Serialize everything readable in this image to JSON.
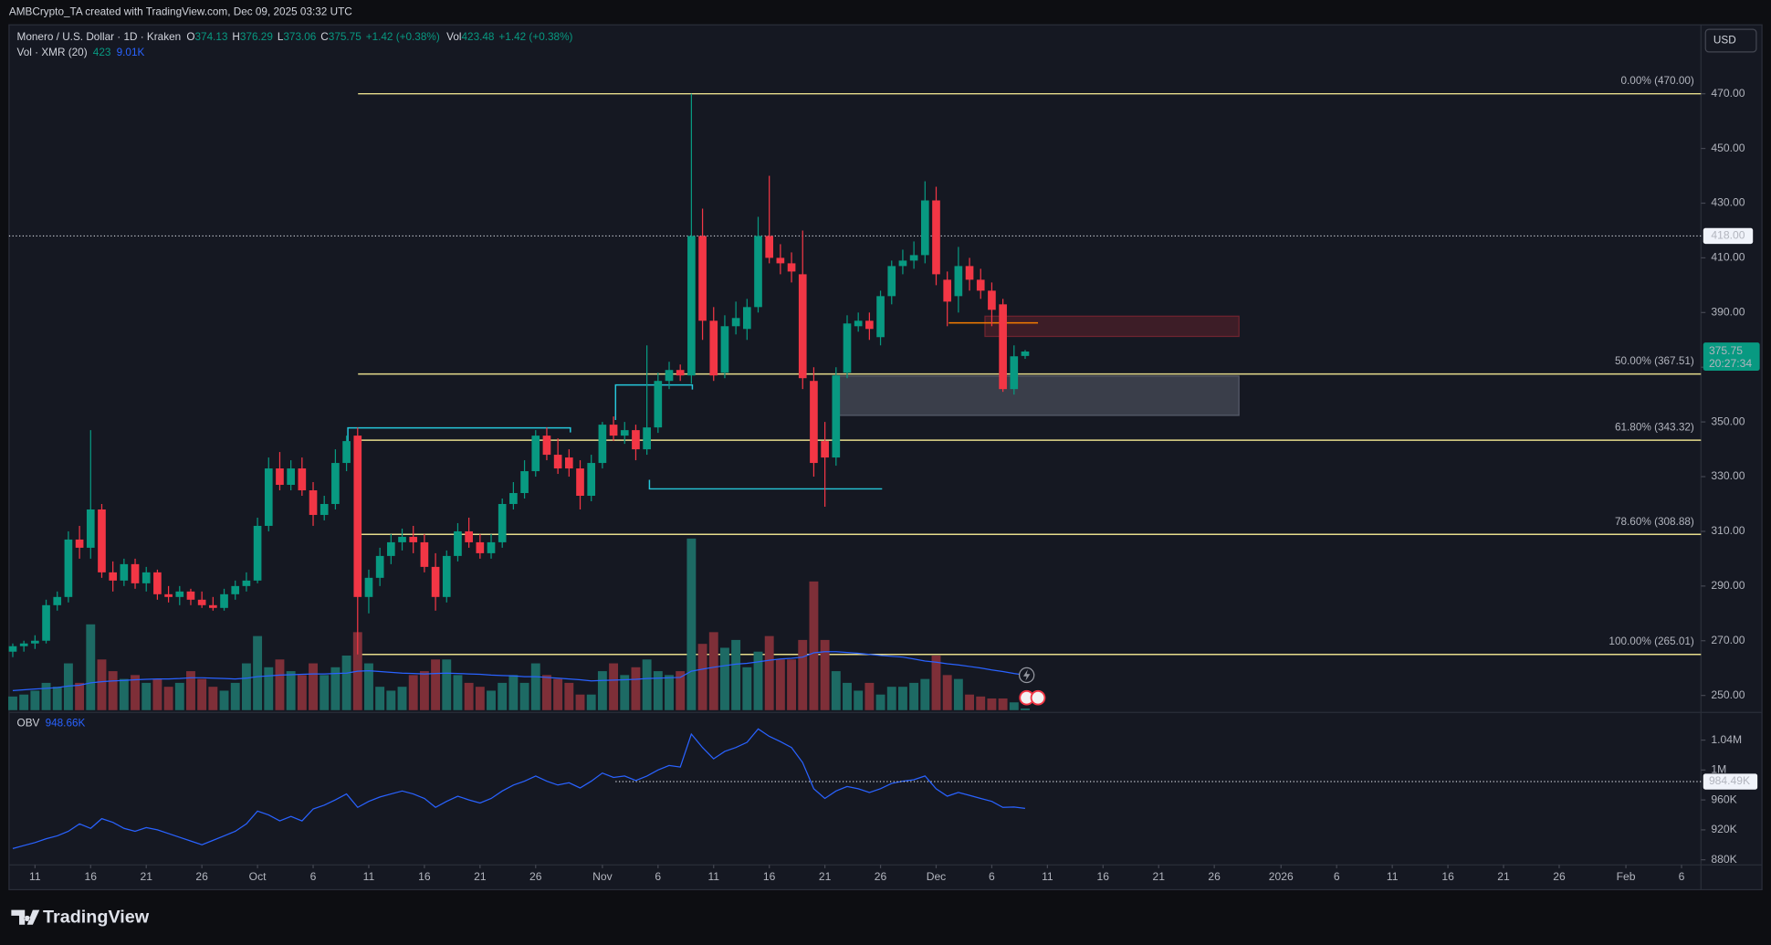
{
  "header": {
    "caption": "AMBCrypto_TA created with TradingView.com, Dec 09, 2025 03:32 UTC",
    "brand": "TradingView",
    "currency_button": "USD",
    "countdown": "20:27:34"
  },
  "chart_data": [
    {
      "type": "candlestick",
      "title": "Monero / U.S. Dollar · 1D · Kraken",
      "x": [
        "2025-09-09",
        "2025-09-10",
        "2025-09-11",
        "2025-09-12",
        "2025-09-13",
        "2025-09-14",
        "2025-09-15",
        "2025-09-16",
        "2025-09-17",
        "2025-09-18",
        "2025-09-19",
        "2025-09-20",
        "2025-09-21",
        "2025-09-22",
        "2025-09-23",
        "2025-09-24",
        "2025-09-25",
        "2025-09-26",
        "2025-09-27",
        "2025-09-28",
        "2025-09-29",
        "2025-09-30",
        "2025-10-01",
        "2025-10-02",
        "2025-10-03",
        "2025-10-04",
        "2025-10-05",
        "2025-10-06",
        "2025-10-07",
        "2025-10-08",
        "2025-10-09",
        "2025-10-10",
        "2025-10-11",
        "2025-10-12",
        "2025-10-13",
        "2025-10-14",
        "2025-10-15",
        "2025-10-16",
        "2025-10-17",
        "2025-10-18",
        "2025-10-19",
        "2025-10-20",
        "2025-10-21",
        "2025-10-22",
        "2025-10-23",
        "2025-10-24",
        "2025-10-25",
        "2025-10-26",
        "2025-10-27",
        "2025-10-28",
        "2025-10-29",
        "2025-10-30",
        "2025-10-31",
        "2025-11-01",
        "2025-11-02",
        "2025-11-03",
        "2025-11-04",
        "2025-11-05",
        "2025-11-06",
        "2025-11-07",
        "2025-11-08",
        "2025-11-09",
        "2025-11-10",
        "2025-11-11",
        "2025-11-12",
        "2025-11-13",
        "2025-11-14",
        "2025-11-15",
        "2025-11-16",
        "2025-11-17",
        "2025-11-18",
        "2025-11-19",
        "2025-11-20",
        "2025-11-21",
        "2025-11-22",
        "2025-11-23",
        "2025-11-24",
        "2025-11-25",
        "2025-11-26",
        "2025-11-27",
        "2025-11-28",
        "2025-11-29",
        "2025-11-30",
        "2025-12-01",
        "2025-12-02",
        "2025-12-03",
        "2025-12-04",
        "2025-12-05",
        "2025-12-06",
        "2025-12-07",
        "2025-12-08",
        "2025-12-09"
      ],
      "open": [
        266,
        268,
        269,
        270,
        283,
        286,
        307,
        304,
        318,
        295,
        292,
        298,
        291,
        295,
        287,
        286,
        288,
        285,
        283,
        282,
        287,
        290,
        292,
        312,
        333,
        327,
        333,
        325,
        316,
        320,
        335,
        345,
        286,
        293,
        301,
        306,
        308,
        306,
        297,
        286,
        301,
        310,
        306,
        302,
        306,
        320,
        324,
        332,
        345,
        338,
        337,
        333,
        323,
        335,
        349,
        345,
        347,
        340,
        348,
        365,
        369,
        367,
        418,
        387,
        368,
        385,
        384,
        392,
        418,
        410,
        408,
        404,
        365,
        343,
        337,
        368,
        385,
        387,
        381,
        396,
        407,
        409,
        411,
        431,
        402,
        396,
        407,
        402,
        398,
        393,
        362,
        374.13
      ],
      "high": [
        269,
        270,
        272,
        285,
        288,
        310,
        312,
        347,
        320,
        299,
        300,
        300,
        297,
        296,
        290,
        290,
        289,
        288,
        286,
        289,
        292,
        295,
        315,
        337,
        339,
        336,
        337,
        328,
        323,
        340,
        345,
        348,
        296,
        304,
        309,
        311,
        312,
        309,
        302,
        303,
        313,
        315,
        309,
        309,
        322,
        328,
        336,
        347,
        348,
        344,
        340,
        336,
        338,
        350,
        352,
        350,
        349,
        378,
        368,
        372,
        371,
        470,
        428,
        392,
        389,
        394,
        395,
        425,
        440,
        415,
        412,
        420,
        370,
        350,
        370,
        389,
        390,
        390,
        398,
        409,
        413,
        416,
        438,
        436,
        405,
        414,
        410,
        406,
        401,
        395,
        378,
        376.29
      ],
      "low": [
        264,
        266,
        267,
        269,
        281,
        284,
        300,
        300,
        293,
        288,
        290,
        289,
        288,
        285,
        284,
        283,
        283,
        282,
        281,
        281,
        285,
        288,
        291,
        310,
        325,
        325,
        323,
        312,
        314,
        318,
        332,
        265,
        280,
        290,
        298,
        303,
        302,
        295,
        281,
        284,
        299,
        304,
        300,
        300,
        304,
        318,
        322,
        330,
        336,
        331,
        330,
        318,
        321,
        333,
        343,
        342,
        336,
        338,
        346,
        362,
        365,
        364,
        380,
        365,
        366,
        382,
        380,
        390,
        408,
        404,
        401,
        362,
        330,
        319,
        334,
        366,
        383,
        380,
        378,
        393,
        404,
        406,
        408,
        400,
        385,
        390,
        398,
        395,
        385,
        361,
        360,
        373.06
      ],
      "close": [
        268,
        269,
        270,
        283,
        286,
        307,
        304,
        318,
        295,
        292,
        298,
        291,
        295,
        287,
        286,
        288,
        285,
        283,
        282,
        287,
        290,
        292,
        312,
        333,
        327,
        333,
        325,
        316,
        320,
        335,
        343,
        286,
        293,
        301,
        306,
        308,
        306,
        297,
        286,
        301,
        310,
        306,
        302,
        306,
        320,
        324,
        332,
        345,
        338,
        333,
        333,
        323,
        335,
        349,
        345,
        347,
        340,
        348,
        365,
        369,
        367,
        418,
        387,
        367,
        385,
        388,
        392,
        418,
        410,
        408,
        405,
        366,
        335,
        337,
        367,
        386,
        387,
        384,
        396,
        407,
        409,
        411,
        431,
        404,
        394,
        407,
        402,
        398,
        391,
        362,
        374,
        375.75
      ],
      "ohlc_labels": [
        "O",
        "H",
        "L",
        "C"
      ],
      "change_label": "+1.42 (+0.38%)",
      "up_color": "#089981",
      "down_color": "#f23645",
      "volume": {
        "name": "Vol",
        "change_label": "+1.42 (+0.38%)",
        "up_color": "#1d6a64",
        "down_color": "#7e2f38",
        "values": [
          3500,
          4000,
          5000,
          7000,
          6000,
          12000,
          7000,
          22000,
          13000,
          10000,
          8000,
          9000,
          7000,
          8000,
          6000,
          7000,
          10000,
          8000,
          6000,
          5000,
          7000,
          12000,
          19000,
          11000,
          13000,
          10000,
          9000,
          12000,
          9000,
          11000,
          14000,
          20000,
          12000,
          6000,
          5000,
          6000,
          9000,
          10000,
          13000,
          13000,
          9000,
          7000,
          6000,
          5000,
          7000,
          9000,
          7000,
          12000,
          9000,
          8000,
          7000,
          4000,
          4000,
          10000,
          12000,
          9000,
          11000,
          13000,
          10000,
          9000,
          10000,
          44000,
          17000,
          20000,
          16000,
          18000,
          11000,
          15000,
          19000,
          13000,
          13000,
          18000,
          33000,
          18000,
          10000,
          7000,
          5000,
          7000,
          4000,
          6000,
          6000,
          7000,
          8000,
          14000,
          9000,
          8000,
          4000,
          3500,
          3000,
          3000,
          2000,
          423.48
        ],
        "ma": {
          "name": "Vol · XMR (20)",
          "last_label": "423",
          "value_label": "9.01K",
          "color": "#2962ff",
          "values": [
            5000,
            5200,
            5400,
            5600,
            5800,
            6200,
            6400,
            7000,
            7300,
            7500,
            7600,
            7800,
            7900,
            8000,
            8000,
            8100,
            8300,
            8300,
            8200,
            8100,
            8000,
            8200,
            8600,
            8800,
            9000,
            9100,
            9200,
            9300,
            9300,
            9400,
            9500,
            10000,
            10100,
            9900,
            9700,
            9500,
            9400,
            9300,
            9400,
            9500,
            9400,
            9300,
            9200,
            9000,
            8900,
            8800,
            8600,
            8600,
            8400,
            8200,
            8000,
            7800,
            7500,
            7600,
            7700,
            7800,
            7900,
            8100,
            8200,
            8300,
            8400,
            10000,
            10500,
            11000,
            11400,
            11800,
            12000,
            12400,
            12800,
            13100,
            13300,
            13600,
            14700,
            15000,
            15000,
            14800,
            14600,
            14300,
            14000,
            13800,
            13600,
            13100,
            12600,
            12300,
            11900,
            11600,
            11200,
            10800,
            10300,
            9900,
            9400,
            9010
          ]
        }
      },
      "ylim": [
        244.2,
        495.2
      ],
      "yticks": [
        {
          "value": 250,
          "label": "250.00"
        },
        {
          "value": 270,
          "label": "270.00"
        },
        {
          "value": 290,
          "label": "290.00"
        },
        {
          "value": 310,
          "label": "310.00"
        },
        {
          "value": 330,
          "label": "330.00"
        },
        {
          "value": 350,
          "label": "350.00"
        },
        {
          "value": 370,
          "label": "370.00"
        },
        {
          "value": 390,
          "label": "390.00"
        },
        {
          "value": 410,
          "label": "410.00"
        },
        {
          "value": 430,
          "label": "430.00"
        },
        {
          "value": 450,
          "label": "450.00"
        },
        {
          "value": 470,
          "label": "470.00"
        }
      ],
      "hlines": [
        {
          "value": 418,
          "label": "418.00"
        }
      ],
      "fib": {
        "color": "#e6dc8c",
        "levels": [
          {
            "value": 470,
            "label": "0.00% (470.00)"
          },
          {
            "value": 367.51,
            "label": "50.00% (367.51)"
          },
          {
            "value": 343.32,
            "label": "61.80% (343.32)"
          },
          {
            "value": 308.88,
            "label": "78.60% (308.88)"
          },
          {
            "value": 265.01,
            "label": "100.00% (265.01)"
          }
        ]
      },
      "xticks": [
        {
          "value": "2025-09-11",
          "label": "11"
        },
        {
          "value": "2025-09-16",
          "label": "16"
        },
        {
          "value": "2025-09-21",
          "label": "21"
        },
        {
          "value": "2025-09-26",
          "label": "26"
        },
        {
          "value": "2025-10-01",
          "label": "Oct"
        },
        {
          "value": "2025-10-06",
          "label": "6"
        },
        {
          "value": "2025-10-11",
          "label": "11"
        },
        {
          "value": "2025-10-16",
          "label": "16"
        },
        {
          "value": "2025-10-21",
          "label": "21"
        },
        {
          "value": "2025-10-26",
          "label": "26"
        },
        {
          "value": "2025-11-01",
          "label": "Nov"
        },
        {
          "value": "2025-11-06",
          "label": "6"
        },
        {
          "value": "2025-11-11",
          "label": "11"
        },
        {
          "value": "2025-11-16",
          "label": "16"
        },
        {
          "value": "2025-11-21",
          "label": "21"
        },
        {
          "value": "2025-11-26",
          "label": "26"
        },
        {
          "value": "2025-12-01",
          "label": "Dec"
        },
        {
          "value": "2025-12-06",
          "label": "6"
        },
        {
          "value": "2025-12-11",
          "label": "11"
        },
        {
          "value": "2025-12-16",
          "label": "16"
        },
        {
          "value": "2025-12-21",
          "label": "21"
        },
        {
          "value": "2025-12-26",
          "label": "26"
        },
        {
          "value": "2026-01-01",
          "label": "2026"
        },
        {
          "value": "2026-01-06",
          "label": "6"
        },
        {
          "value": "2026-01-11",
          "label": "11"
        },
        {
          "value": "2026-01-16",
          "label": "16"
        },
        {
          "value": "2026-01-21",
          "label": "21"
        },
        {
          "value": "2026-01-26",
          "label": "26"
        },
        {
          "value": "2026-02-01",
          "label": "Feb"
        },
        {
          "value": "2026-02-06",
          "label": "6"
        }
      ]
    },
    {
      "type": "line",
      "title": "OBV",
      "value_label": "948.66K",
      "color": "#2962ff",
      "values": [
        895000,
        899000,
        903000,
        908000,
        912000,
        918000,
        928000,
        922000,
        935000,
        930000,
        922000,
        918000,
        923000,
        920000,
        915000,
        910000,
        905000,
        900000,
        906000,
        912000,
        918000,
        928000,
        945000,
        940000,
        932000,
        938000,
        932000,
        948000,
        953000,
        960000,
        968000,
        950000,
        958000,
        964000,
        968000,
        972000,
        968000,
        962000,
        950000,
        958000,
        965000,
        960000,
        956000,
        962000,
        972000,
        980000,
        985000,
        992000,
        985000,
        980000,
        983000,
        976000,
        985000,
        996000,
        990000,
        992000,
        986000,
        992000,
        1000000,
        1006000,
        1004000,
        1048000,
        1030000,
        1015000,
        1025000,
        1030000,
        1037000,
        1055000,
        1045000,
        1038000,
        1030000,
        1010000,
        975000,
        962000,
        972000,
        978000,
        975000,
        970000,
        975000,
        982000,
        985000,
        987000,
        992000,
        975000,
        965000,
        970000,
        966000,
        962000,
        958000,
        950000,
        950500,
        948660
      ],
      "ylim": [
        873200,
        1075500
      ],
      "yticks": [
        {
          "value": 880000,
          "label": "880K"
        },
        {
          "value": 920000,
          "label": "920K"
        },
        {
          "value": 960000,
          "label": "960K"
        },
        {
          "value": 1000000,
          "label": "1M"
        },
        {
          "value": 1040000,
          "label": "1.04M"
        }
      ],
      "hlines": [
        {
          "value": 984490,
          "label": "984.49K"
        }
      ]
    }
  ]
}
